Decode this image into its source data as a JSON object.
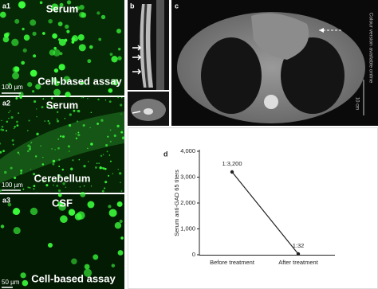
{
  "panels": {
    "a1": {
      "label": "a1",
      "top": "Serum",
      "bottom": "Cell-based assay",
      "scale": "100 µm"
    },
    "a2": {
      "label": "a2",
      "top": "Serum",
      "bottom": "Cerebellum",
      "scale": "100 µm"
    },
    "a3": {
      "label": "a3",
      "top": "CSF",
      "bottom": "Cell-based assay",
      "scale": "50 µm"
    },
    "b": {
      "label": "b"
    },
    "c": {
      "label": "c",
      "note": "Colour version available online",
      "scale": "10 cm"
    }
  },
  "chart_data": {
    "type": "line",
    "label": "d",
    "y_label": "Serum anti-GAD 65 titers",
    "categories": [
      "Before treatment",
      "After treatment"
    ],
    "values": [
      3200,
      32
    ],
    "value_labels": [
      "1:3,200",
      "1:32"
    ],
    "color": "#222222",
    "ylim": [
      0,
      4000
    ],
    "yticks": [
      0,
      {
        "value": 1000,
        "label": "1,000"
      },
      {
        "value": 2000,
        "label": "2,000"
      },
      {
        "value": 3000,
        "label": "3,000"
      },
      {
        "value": 4000,
        "label": "4,000"
      }
    ]
  }
}
